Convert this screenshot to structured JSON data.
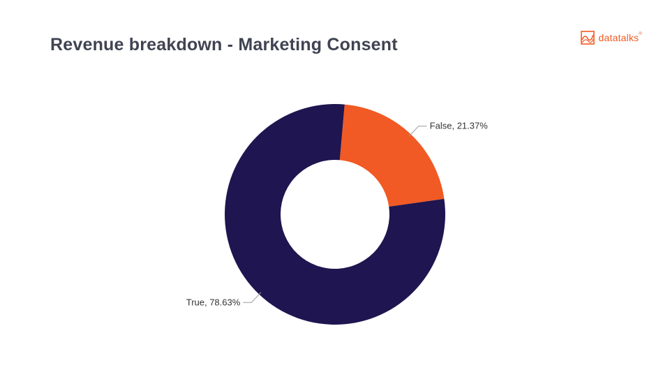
{
  "title": "Revenue breakdown - Marketing Consent",
  "brand": {
    "name": "datatalks",
    "mark": "®",
    "color": "#f15a24",
    "icon": "datatalks-logo-icon"
  },
  "chart_data": {
    "type": "pie",
    "donut": true,
    "start_angle_deg": 5,
    "slices": [
      {
        "label": "False",
        "value": 21.37,
        "display": "False, 21.37%",
        "color": "#f15a24"
      },
      {
        "label": "True",
        "value": 78.63,
        "display": "True, 78.63%",
        "color": "#1f1550"
      }
    ],
    "legend": "none"
  }
}
